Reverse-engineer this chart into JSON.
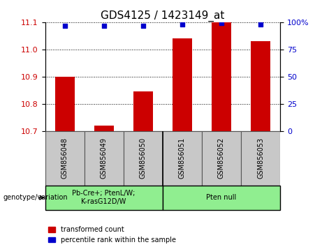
{
  "title": "GDS4125 / 1423149_at",
  "samples": [
    "GSM856048",
    "GSM856049",
    "GSM856050",
    "GSM856051",
    "GSM856052",
    "GSM856053"
  ],
  "red_values": [
    10.9,
    10.72,
    10.845,
    11.04,
    11.1,
    11.03
  ],
  "blue_percentiles": [
    97,
    97,
    97,
    98,
    99,
    98
  ],
  "ylim_left": [
    10.7,
    11.1
  ],
  "ylim_right": [
    0,
    100
  ],
  "yticks_left": [
    10.7,
    10.8,
    10.9,
    11.0,
    11.1
  ],
  "yticks_right": [
    0,
    25,
    50,
    75,
    100
  ],
  "ytick_right_labels": [
    "0",
    "25",
    "50",
    "75",
    "100%"
  ],
  "group1_label": "Pb-Cre+; PtenL/W;\nK-rasG12D/W",
  "group2_label": "Pten null",
  "genotype_label": "genotype/variation",
  "legend_red": "transformed count",
  "legend_blue": "percentile rank within the sample",
  "bar_color": "#cc0000",
  "dot_color": "#0000cc",
  "group_color": "#90ee90",
  "sample_bg_color": "#c8c8c8",
  "bar_width": 0.5,
  "title_fontsize": 11,
  "tick_fontsize": 8,
  "left_tick_color": "#cc0000",
  "right_tick_color": "#0000cc"
}
